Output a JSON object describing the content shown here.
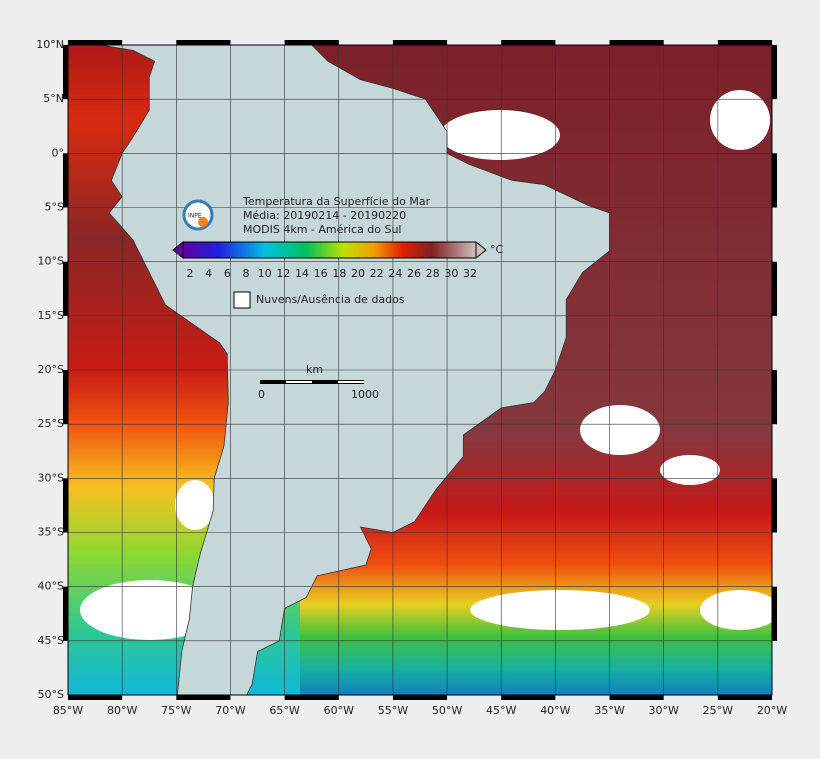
{
  "map": {
    "lon_labels": [
      "85°W",
      "80°W",
      "75°W",
      "70°W",
      "65°W",
      "60°W",
      "55°W",
      "50°W",
      "45°W",
      "40°W",
      "35°W",
      "30°W",
      "25°W",
      "20°W"
    ],
    "lat_labels": [
      "10°N",
      "5°N",
      "0°",
      "5°S",
      "10°S",
      "15°S",
      "20°S",
      "25°S",
      "30°S",
      "35°S",
      "40°S",
      "45°S",
      "50°S"
    ],
    "legend": {
      "title_lines": [
        "Temperatura da Superfície do Mar",
        "Média: 20190214 - 20190220",
        "MODIS 4km - América do Sul"
      ],
      "logo_text": "INPE",
      "colorbar_ticks": [
        2,
        4,
        6,
        8,
        10,
        12,
        14,
        16,
        18,
        20,
        22,
        24,
        26,
        28,
        30,
        32
      ],
      "unit": "°C",
      "clouds": "Nuvens/Ausência de dados"
    },
    "scale_bar": {
      "unit": "km",
      "start": "0",
      "end": "1000"
    }
  }
}
